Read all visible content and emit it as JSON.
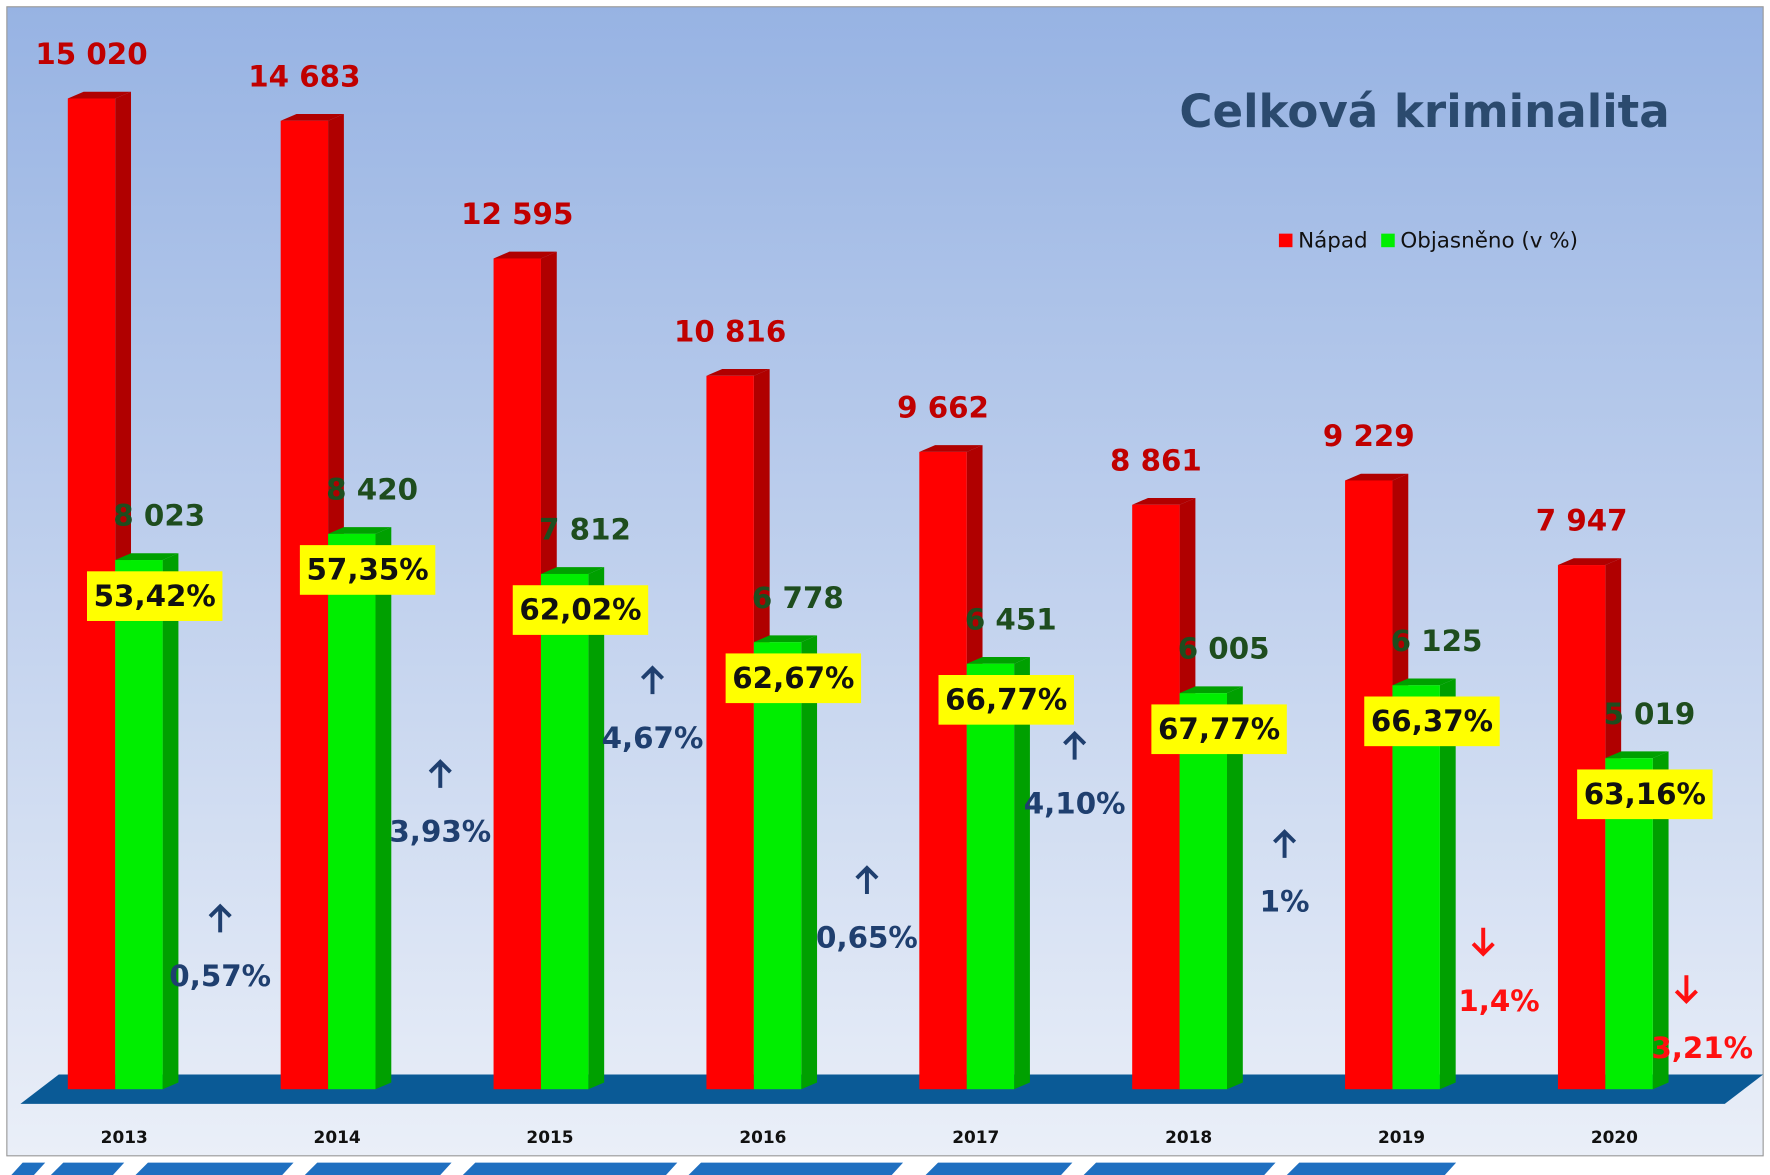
{
  "chart_data": {
    "type": "bar",
    "title": "Celková kriminalita",
    "categories": [
      "2013",
      "2014",
      "2015",
      "2016",
      "2017",
      "2018",
      "2019",
      "2020"
    ],
    "series": [
      {
        "name": "Nápad",
        "color": "#ff0000",
        "values": [
          15020,
          14683,
          12595,
          10816,
          9662,
          8861,
          9229,
          7947
        ],
        "value_labels": [
          "15 020",
          "14 683",
          "12 595",
          "10 816",
          "9 662",
          "8 861",
          "9 229",
          "7 947"
        ]
      },
      {
        "name": "Objasněno (v %)",
        "color": "#00ee00",
        "values": [
          8023,
          8420,
          7812,
          6778,
          6451,
          6005,
          6125,
          5019
        ],
        "value_labels": [
          "8 023",
          "8 420",
          "7 812",
          "6 778",
          "6 451",
          "6 005",
          "6 125",
          "5 019"
        ],
        "percent_labels": [
          "53,42%",
          "57,35%",
          "62,02%",
          "62,67%",
          "66,77%",
          "67,77%",
          "66,37%",
          "63,16%"
        ]
      }
    ],
    "changes": [
      {
        "label": "0,57%",
        "direction": "up"
      },
      {
        "label": "3,93%",
        "direction": "up"
      },
      {
        "label": "4,67%",
        "direction": "up"
      },
      {
        "label": "0,65%",
        "direction": "up"
      },
      {
        "label": "4,10%",
        "direction": "up"
      },
      {
        "label": "1%",
        "direction": "up"
      },
      {
        "label": "1,4%",
        "direction": "down"
      },
      {
        "label": "3,21%",
        "direction": "down"
      }
    ],
    "ylim": [
      0,
      16000
    ],
    "legend": "top-right"
  }
}
